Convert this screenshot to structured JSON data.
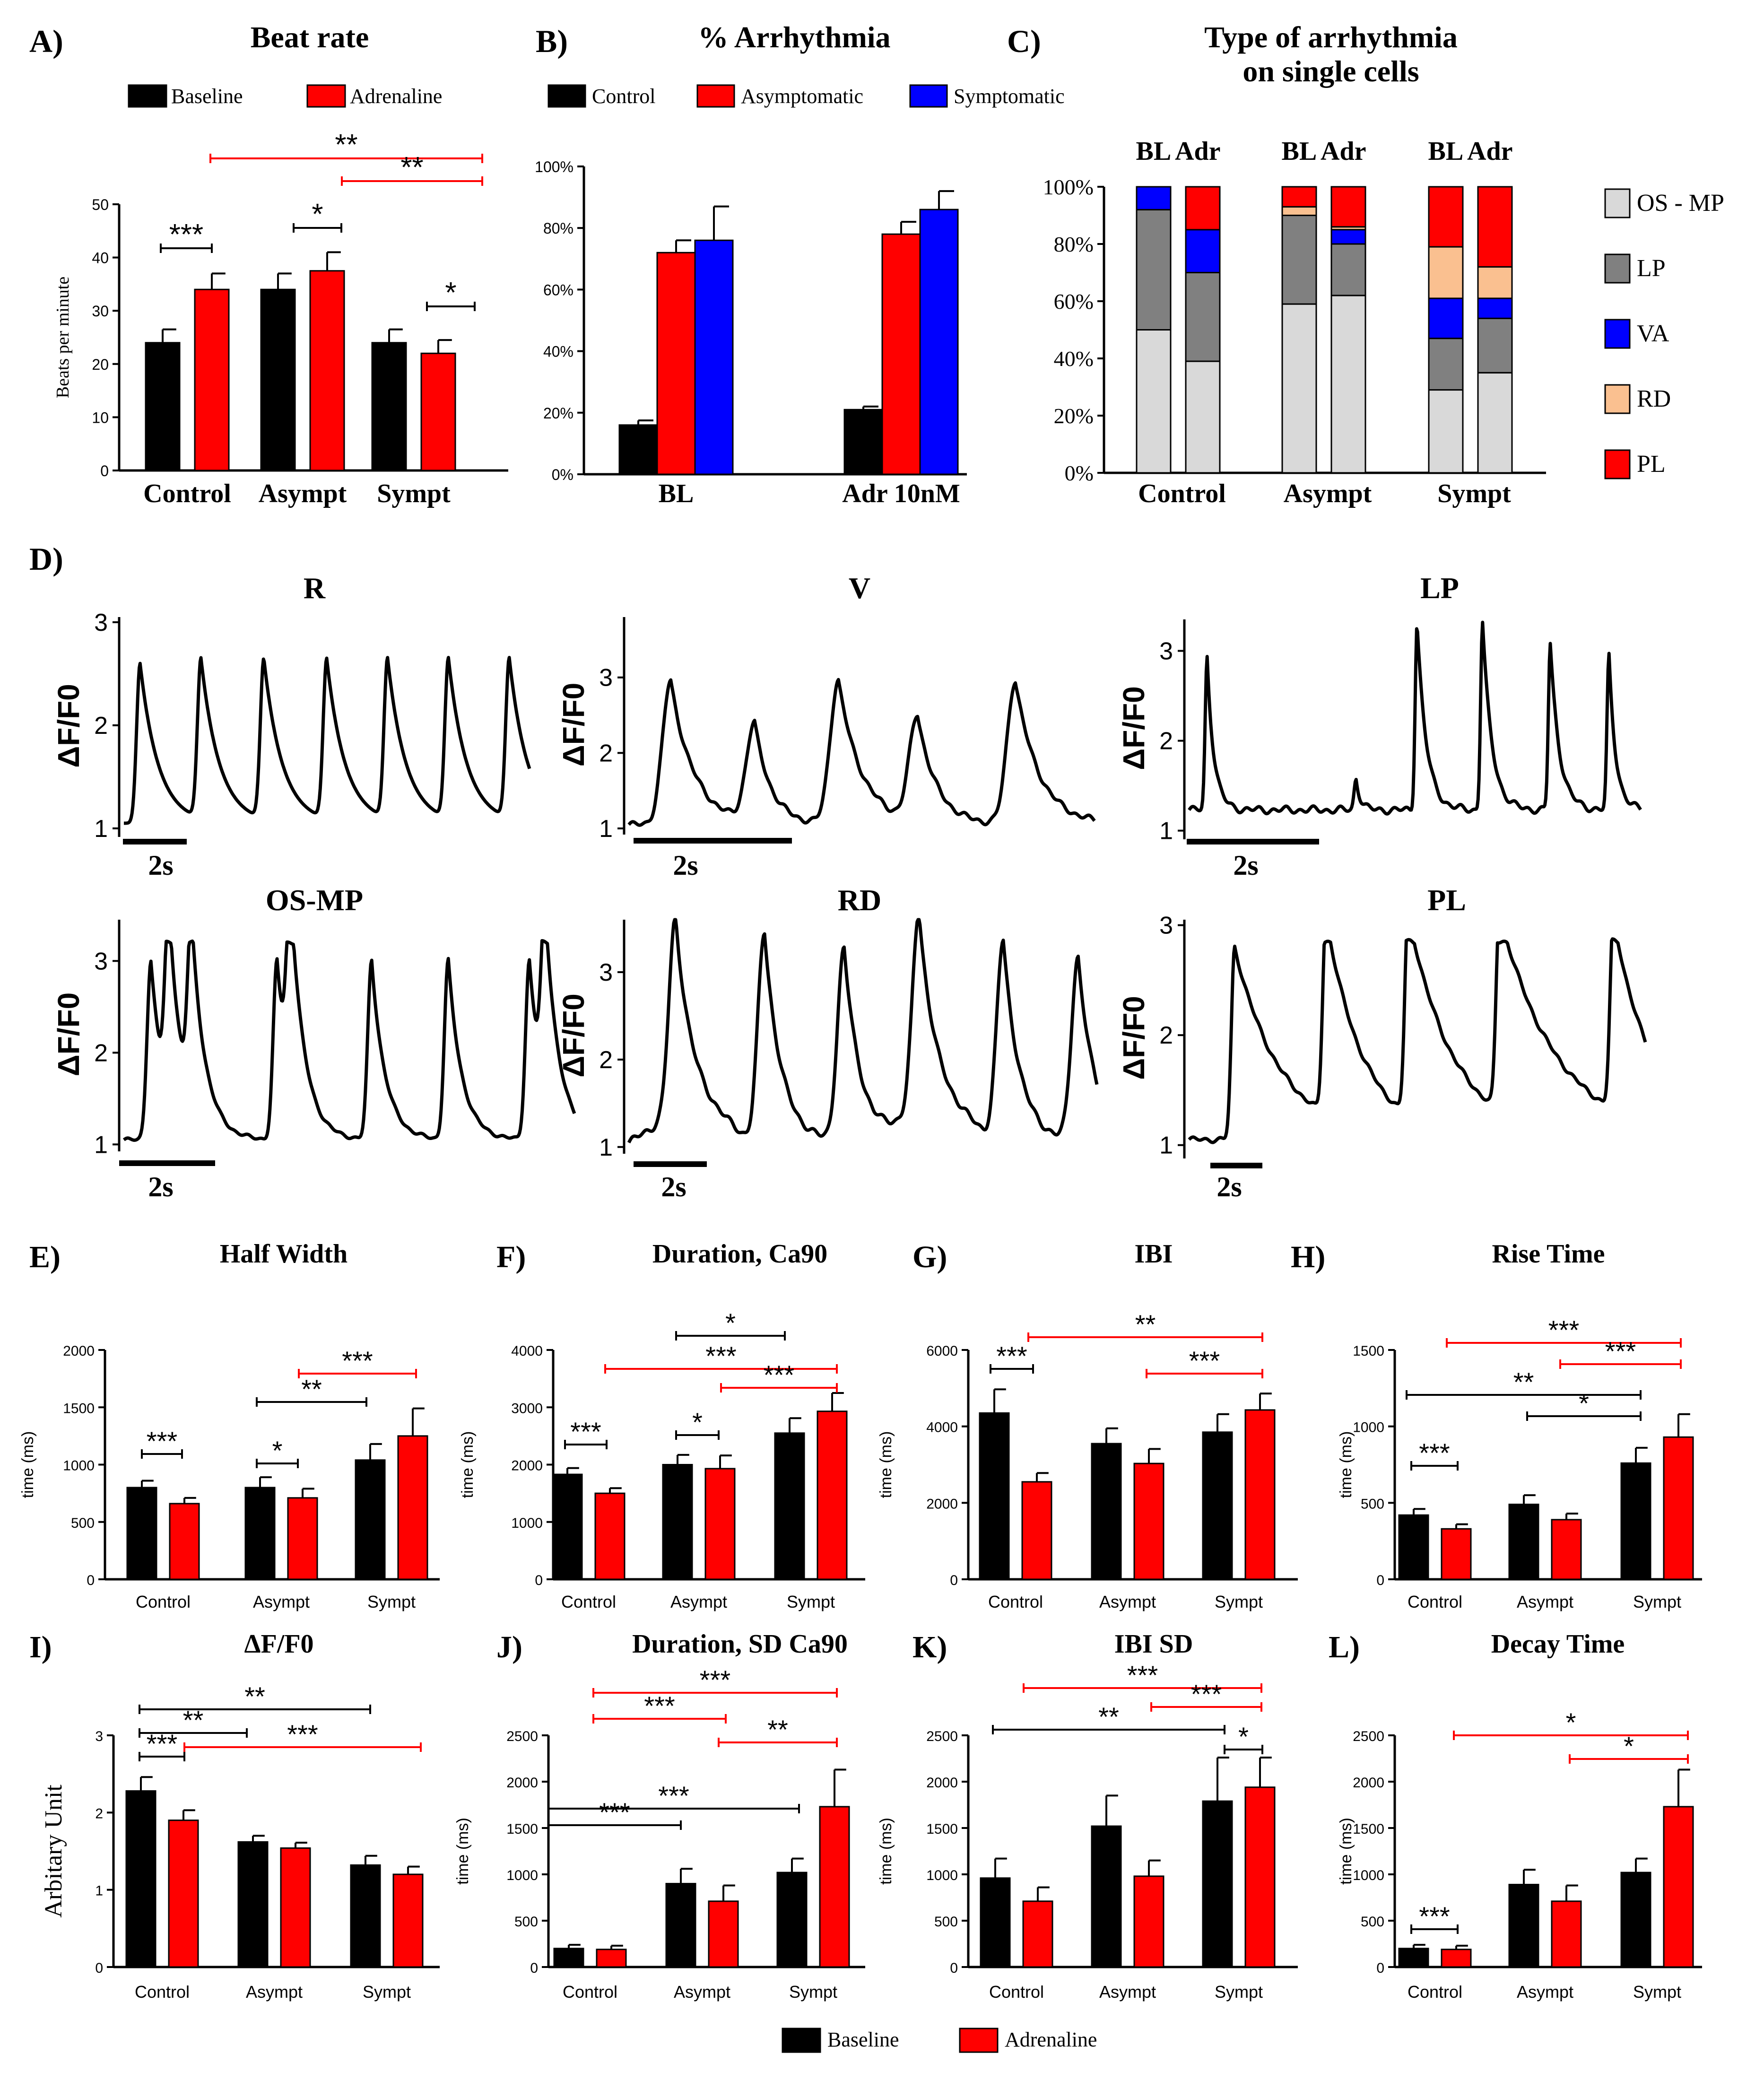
{
  "colors": {
    "baseline": "#000000",
    "adrenaline": "#ff0000",
    "symptomatic": "#0000ff",
    "os_mp": "#d9d9d9",
    "lp": "#808080",
    "va": "#0000ff",
    "rd": "#fac090",
    "pl": "#ff0000"
  },
  "bottom_legend": {
    "baseline": "Baseline",
    "adrenaline": "Adrenaline"
  },
  "chart_data": [
    {
      "id": "A",
      "panel_label": "A)",
      "type": "bar",
      "title": "Beat rate",
      "legend": [
        "Baseline",
        "Adrenaline"
      ],
      "categories": [
        "Control",
        "Asympt",
        "Sympt"
      ],
      "series": [
        {
          "name": "Baseline",
          "values": [
            24,
            34,
            24
          ],
          "err": [
            2.5,
            3,
            2.5
          ]
        },
        {
          "name": "Adrenaline",
          "values": [
            34,
            37.5,
            22
          ],
          "err": [
            3,
            3.5,
            2.5
          ]
        }
      ],
      "ylabel": "Beats per minute",
      "ylim": [
        0,
        50
      ],
      "yticks": [
        "0",
        "10",
        "20",
        "30",
        "40",
        "50"
      ],
      "annotations": [
        {
          "text": "***",
          "color": "black"
        },
        {
          "text": "*",
          "color": "black"
        },
        {
          "text": "*",
          "color": "black"
        },
        {
          "text": "**",
          "color": "red"
        },
        {
          "text": "**",
          "color": "red"
        }
      ]
    },
    {
      "id": "B",
      "panel_label": "B)",
      "type": "bar",
      "title": "% Arrhythmia",
      "legend": [
        "Control",
        "Asymptomatic",
        "Symptomatic"
      ],
      "categories": [
        "BL",
        "Adr 10nM"
      ],
      "series": [
        {
          "name": "Control",
          "values": [
            16,
            21
          ],
          "err": [
            1.5,
            1
          ]
        },
        {
          "name": "Asymptomatic",
          "values": [
            72,
            78
          ],
          "err": [
            4,
            4
          ]
        },
        {
          "name": "Symptomatic",
          "values": [
            76,
            86
          ],
          "err": [
            11,
            6
          ]
        }
      ],
      "ylim": [
        0,
        100
      ],
      "yticks": [
        "0%",
        "20%",
        "40%",
        "60%",
        "80%",
        "100%"
      ]
    },
    {
      "id": "C",
      "panel_label": "C)",
      "type": "stacked_bar",
      "title": [
        "Type of arrhythmia",
        "on single cells"
      ],
      "group_header": [
        "BL Adr",
        "BL Adr",
        "BL Adr"
      ],
      "categories": [
        "Control",
        "Asympt",
        "Sympt"
      ],
      "legend": [
        "OS - MP",
        "LP",
        "VA",
        "RD",
        "PL"
      ],
      "stacks": [
        [
          50,
          42,
          8,
          0,
          0
        ],
        [
          39,
          31,
          15,
          0,
          15
        ],
        [
          59,
          31,
          0,
          3,
          7
        ],
        [
          62,
          18,
          5,
          1,
          14
        ],
        [
          29,
          18,
          14,
          18,
          21
        ],
        [
          35,
          19,
          7,
          11,
          28
        ]
      ],
      "yticks": [
        "0%",
        "20%",
        "40%",
        "60%",
        "80%",
        "100%"
      ]
    },
    {
      "id": "E",
      "panel_label": "E)",
      "type": "bar",
      "title": "Half Width",
      "categories": [
        "Control",
        "Asympt",
        "Sympt"
      ],
      "series": [
        {
          "name": "Baseline",
          "values": [
            800,
            800,
            1040
          ],
          "err": [
            60,
            90,
            140
          ]
        },
        {
          "name": "Adrenaline",
          "values": [
            660,
            710,
            1250
          ],
          "err": [
            50,
            80,
            240
          ]
        }
      ],
      "ylabel": "time (ms)",
      "ylim": [
        0,
        2000
      ],
      "yticks": [
        "0",
        "500",
        "1000",
        "1500",
        "2000"
      ],
      "annotations": [
        {
          "text": "***",
          "color": "black"
        },
        {
          "text": "*",
          "color": "black"
        },
        {
          "text": "**",
          "color": "black"
        },
        {
          "text": "***",
          "color": "red"
        }
      ]
    },
    {
      "id": "F",
      "panel_label": "F)",
      "type": "bar",
      "title": "Duration, Ca90",
      "categories": [
        "Control",
        "Asympt",
        "Sympt"
      ],
      "series": [
        {
          "name": "Baseline",
          "values": [
            1830,
            2000,
            2550
          ],
          "err": [
            110,
            170,
            260
          ]
        },
        {
          "name": "Adrenaline",
          "values": [
            1500,
            1930,
            2930
          ],
          "err": [
            90,
            230,
            320
          ]
        }
      ],
      "ylabel": "time (ms)",
      "ylim": [
        0,
        4000
      ],
      "yticks": [
        "0",
        "1000",
        "2000",
        "3000",
        "4000"
      ],
      "annotations": [
        {
          "text": "***",
          "color": "black"
        },
        {
          "text": "*",
          "color": "black"
        },
        {
          "text": "*",
          "color": "black"
        },
        {
          "text": "***",
          "color": "red"
        },
        {
          "text": "***",
          "color": "red"
        }
      ]
    },
    {
      "id": "G",
      "panel_label": "G)",
      "type": "bar",
      "title": "IBI",
      "categories": [
        "Control",
        "Asympt",
        "Sympt"
      ],
      "series": [
        {
          "name": "Baseline",
          "values": [
            4350,
            3550,
            3850
          ],
          "err": [
            620,
            400,
            470
          ]
        },
        {
          "name": "Adrenaline",
          "values": [
            2550,
            3030,
            4430
          ],
          "err": [
            230,
            380,
            430
          ]
        }
      ],
      "ylabel": "time (ms)",
      "ylim": [
        0,
        6000
      ],
      "yticks": [
        "0",
        "2000",
        "4000",
        "6000"
      ],
      "annotations": [
        {
          "text": "***",
          "color": "black"
        },
        {
          "text": "**",
          "color": "red"
        },
        {
          "text": "***",
          "color": "red"
        }
      ]
    },
    {
      "id": "H",
      "panel_label": "H)",
      "type": "bar",
      "title": "Rise Time",
      "categories": [
        "Control",
        "Asympt",
        "Sympt"
      ],
      "series": [
        {
          "name": "Baseline",
          "values": [
            420,
            490,
            760
          ],
          "err": [
            40,
            60,
            100
          ]
        },
        {
          "name": "Adrenaline",
          "values": [
            330,
            390,
            930
          ],
          "err": [
            30,
            40,
            150
          ]
        }
      ],
      "ylabel": "time (ms)",
      "ylim": [
        0,
        1500
      ],
      "yticks": [
        "0",
        "500",
        "1000",
        "1500"
      ],
      "annotations": [
        {
          "text": "***",
          "color": "black"
        },
        {
          "text": "*",
          "color": "black"
        },
        {
          "text": "**",
          "color": "black"
        },
        {
          "text": "***",
          "color": "red"
        },
        {
          "text": "***",
          "color": "red"
        }
      ]
    },
    {
      "id": "I",
      "panel_label": "I)",
      "type": "bar",
      "title": "ΔF/F0",
      "categories": [
        "Control",
        "Asympt",
        "Sympt"
      ],
      "series": [
        {
          "name": "Baseline",
          "values": [
            2.28,
            1.62,
            1.32
          ],
          "err": [
            0.18,
            0.08,
            0.12
          ]
        },
        {
          "name": "Adrenaline",
          "values": [
            1.9,
            1.54,
            1.2
          ],
          "err": [
            0.13,
            0.07,
            0.1
          ]
        }
      ],
      "ylabel": "Arbitary Unit",
      "ylim": [
        0,
        3
      ],
      "yticks": [
        "0",
        "1",
        "2",
        "3"
      ],
      "annotations": [
        {
          "text": "***",
          "color": "black"
        },
        {
          "text": "**",
          "color": "black"
        },
        {
          "text": "**",
          "color": "black"
        },
        {
          "text": "***",
          "color": "red"
        }
      ]
    },
    {
      "id": "J",
      "panel_label": "J)",
      "type": "bar",
      "title": "Duration, SD Ca90",
      "categories": [
        "Control",
        "Asympt",
        "Sympt"
      ],
      "series": [
        {
          "name": "Baseline",
          "values": [
            200,
            900,
            1020
          ],
          "err": [
            40,
            160,
            150
          ]
        },
        {
          "name": "Adrenaline",
          "values": [
            190,
            710,
            1730
          ],
          "err": [
            40,
            170,
            400
          ]
        }
      ],
      "ylabel": "time (ms)",
      "ylim": [
        0,
        2500
      ],
      "yticks": [
        "0",
        "500",
        "1000",
        "1500",
        "2000",
        "2500"
      ],
      "annotations": [
        {
          "text": "***",
          "color": "black"
        },
        {
          "text": "***",
          "color": "black"
        },
        {
          "text": "***",
          "color": "red"
        },
        {
          "text": "***",
          "color": "red"
        },
        {
          "text": "**",
          "color": "red"
        }
      ]
    },
    {
      "id": "K",
      "panel_label": "K)",
      "type": "bar",
      "title": "IBI SD",
      "categories": [
        "Control",
        "Asympt",
        "Sympt"
      ],
      "series": [
        {
          "name": "Baseline",
          "values": [
            960,
            1520,
            1790
          ],
          "err": [
            210,
            330,
            470
          ]
        },
        {
          "name": "Adrenaline",
          "values": [
            710,
            980,
            1940
          ],
          "err": [
            150,
            170,
            320
          ]
        }
      ],
      "ylabel": "time (ms)",
      "ylim": [
        0,
        2500
      ],
      "yticks": [
        "0",
        "500",
        "1000",
        "1500",
        "2000",
        "2500"
      ],
      "annotations": [
        {
          "text": "**",
          "color": "black"
        },
        {
          "text": "*",
          "color": "black"
        },
        {
          "text": "***",
          "color": "red"
        },
        {
          "text": "***",
          "color": "red"
        }
      ]
    },
    {
      "id": "L",
      "panel_label": "L)",
      "type": "bar",
      "title": "Decay Time",
      "categories": [
        "Control",
        "Asympt",
        "Sympt"
      ],
      "series": [
        {
          "name": "Baseline",
          "values": [
            200,
            890,
            1020
          ],
          "err": [
            40,
            160,
            150
          ]
        },
        {
          "name": "Adrenaline",
          "values": [
            190,
            710,
            1730
          ],
          "err": [
            40,
            170,
            400
          ]
        }
      ],
      "ylabel": "time (ms)",
      "ylim": [
        0,
        2500
      ],
      "yticks": [
        "0",
        "500",
        "1000",
        "1500",
        "2000",
        "2500"
      ],
      "annotations": [
        {
          "text": "***",
          "color": "black"
        },
        {
          "text": "*",
          "color": "red"
        },
        {
          "text": "*",
          "color": "red"
        }
      ]
    }
  ],
  "traces": {
    "panel_label": "D)",
    "ylabel": "ΔF/F0",
    "scalebar": "2s",
    "items": [
      {
        "title": "R",
        "yticks": [
          "1",
          "2",
          "3"
        ]
      },
      {
        "title": "V",
        "yticks": [
          "1",
          "2",
          "3"
        ]
      },
      {
        "title": "LP",
        "yticks": [
          "1",
          "2",
          "3"
        ]
      },
      {
        "title": "OS-MP",
        "yticks": [
          "1",
          "2",
          "3"
        ]
      },
      {
        "title": "RD",
        "yticks": [
          "1",
          "2",
          "3"
        ]
      },
      {
        "title": "PL",
        "yticks": [
          "1",
          "2",
          "3"
        ]
      }
    ]
  }
}
